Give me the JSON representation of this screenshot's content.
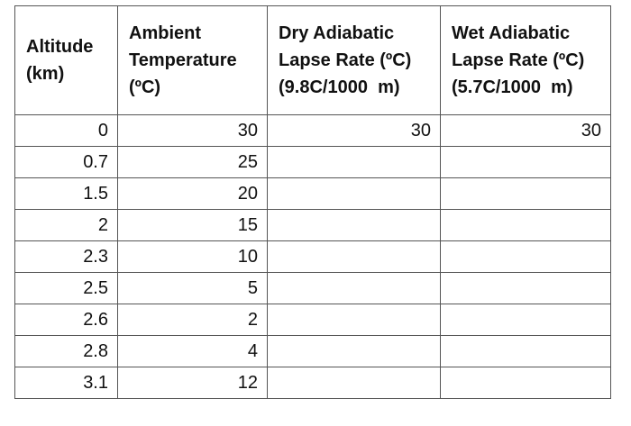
{
  "table": {
    "headers": [
      [
        "Altitude",
        "(km)"
      ],
      [
        "Ambient",
        "Temperature",
        "(ºC)"
      ],
      [
        "Dry Adiabatic",
        "Lapse Rate (ºC)",
        "(9.8C/1000  m)"
      ],
      [
        "Wet Adiabatic",
        "Lapse Rate (ºC)",
        "(5.7C/1000  m)"
      ]
    ],
    "rows": [
      [
        0,
        30,
        30,
        30
      ],
      [
        0.7,
        25
      ],
      [
        1.5,
        20
      ],
      [
        2,
        15
      ],
      [
        2.3,
        10
      ],
      [
        2.5,
        5
      ],
      [
        2.6,
        2
      ],
      [
        2.8,
        4
      ],
      [
        3.1,
        12
      ]
    ]
  }
}
